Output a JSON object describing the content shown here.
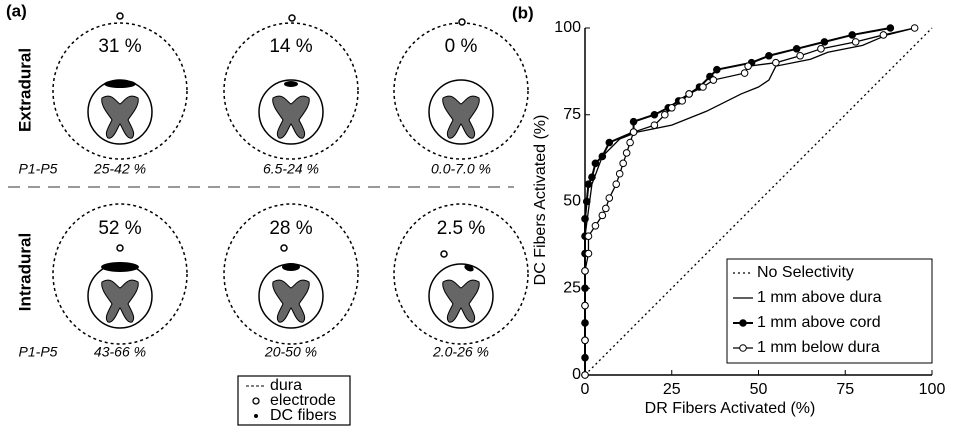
{
  "panel_a": {
    "label": "(a)",
    "rows": [
      {
        "label": "Extradural",
        "range_label": "P1-P5",
        "cells": [
          {
            "percent": "31 %",
            "range": "25-42 %"
          },
          {
            "percent": "14 %",
            "range": "6.5-24 %"
          },
          {
            "percent": "0 %",
            "range": "0.0-7.0 %"
          }
        ]
      },
      {
        "label": "Intradural",
        "range_label": "P1-P5",
        "cells": [
          {
            "percent": "52 %",
            "range": "43-66 %"
          },
          {
            "percent": "28 %",
            "range": "20-50 %"
          },
          {
            "percent": "2.5 %",
            "range": "2.0-26 %"
          }
        ]
      }
    ],
    "legend": [
      "dura",
      "electrode",
      "DC fibers"
    ]
  },
  "chart_data": {
    "type": "line",
    "panel_label": "(b)",
    "x_label": "DR Fibers Activated (%)",
    "y_label": "DC Fibers Activated (%)",
    "xlim": [
      0,
      100
    ],
    "ylim": [
      0,
      100
    ],
    "xticks": [
      0,
      25,
      50,
      75,
      100
    ],
    "yticks": [
      0,
      25,
      50,
      75,
      100
    ],
    "legend": "lower right",
    "series": [
      {
        "name": "No Selectivity",
        "color": "#000000",
        "dash": "dotted",
        "marker": "none",
        "x": [
          0,
          100
        ],
        "values": [
          0,
          100
        ]
      },
      {
        "name": "1 mm above dura",
        "color": "#000000",
        "dash": "solid",
        "marker": "none",
        "x": [
          0,
          0,
          2,
          5,
          10,
          15,
          25,
          35,
          45,
          50,
          53,
          55,
          65,
          70,
          80,
          87,
          95
        ],
        "values": [
          0,
          40,
          55,
          63,
          68,
          70,
          72,
          76,
          81,
          83,
          85,
          89,
          91,
          93,
          95,
          98,
          100
        ]
      },
      {
        "name": "1 mm above cord",
        "color": "#000000",
        "dash": "solid",
        "marker": "filled",
        "x": [
          0,
          0,
          0,
          0,
          0,
          0,
          0,
          0,
          0,
          0,
          0.5,
          1,
          2,
          3,
          5,
          7,
          14,
          14,
          20,
          24,
          27,
          30,
          33,
          36,
          38,
          48,
          53,
          61,
          69,
          77,
          88
        ],
        "values": [
          0,
          5,
          10,
          15,
          20,
          25,
          30,
          35,
          40,
          45,
          50,
          55,
          57,
          61,
          63,
          67,
          70,
          73,
          75,
          77,
          79,
          81,
          83,
          86,
          88,
          90,
          92,
          94,
          96,
          98,
          100
        ]
      },
      {
        "name": "1 mm below dura",
        "color": "#000000",
        "dash": "solid",
        "marker": "open",
        "x": [
          0,
          0,
          0,
          0,
          1,
          1,
          3,
          5,
          6,
          7,
          9,
          10,
          11,
          12,
          13,
          14,
          20,
          23,
          25,
          28,
          30,
          34,
          37,
          46,
          47,
          55,
          62,
          68,
          78,
          86,
          95
        ],
        "values": [
          0,
          10,
          20,
          30,
          35,
          40,
          43,
          46,
          48,
          51,
          55,
          58,
          61,
          64,
          67,
          70,
          72,
          75,
          77,
          79,
          81,
          83,
          85,
          87,
          89,
          90,
          92,
          94,
          96,
          98,
          100
        ]
      }
    ]
  }
}
